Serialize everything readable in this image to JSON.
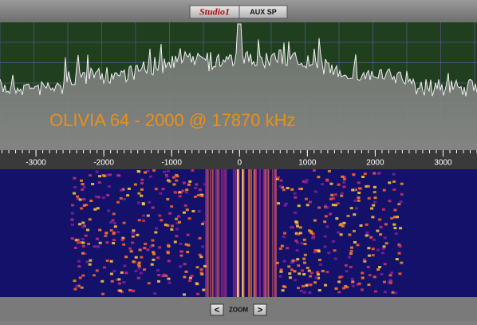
{
  "header": {
    "buttons": [
      "Studio1",
      "AUX SP"
    ]
  },
  "spectrum": {
    "annotation": "OLIVIA 64 - 2000  @ 17870 kHz"
  },
  "frequency_axis": {
    "xlim": [
      -3530,
      3500
    ],
    "ticks": [
      -3000,
      -2000,
      -1000,
      0,
      1000,
      2000,
      3000
    ]
  },
  "footer": {
    "zoom_out": "<",
    "zoom_label": "ZOOM",
    "zoom_in": ">"
  }
}
